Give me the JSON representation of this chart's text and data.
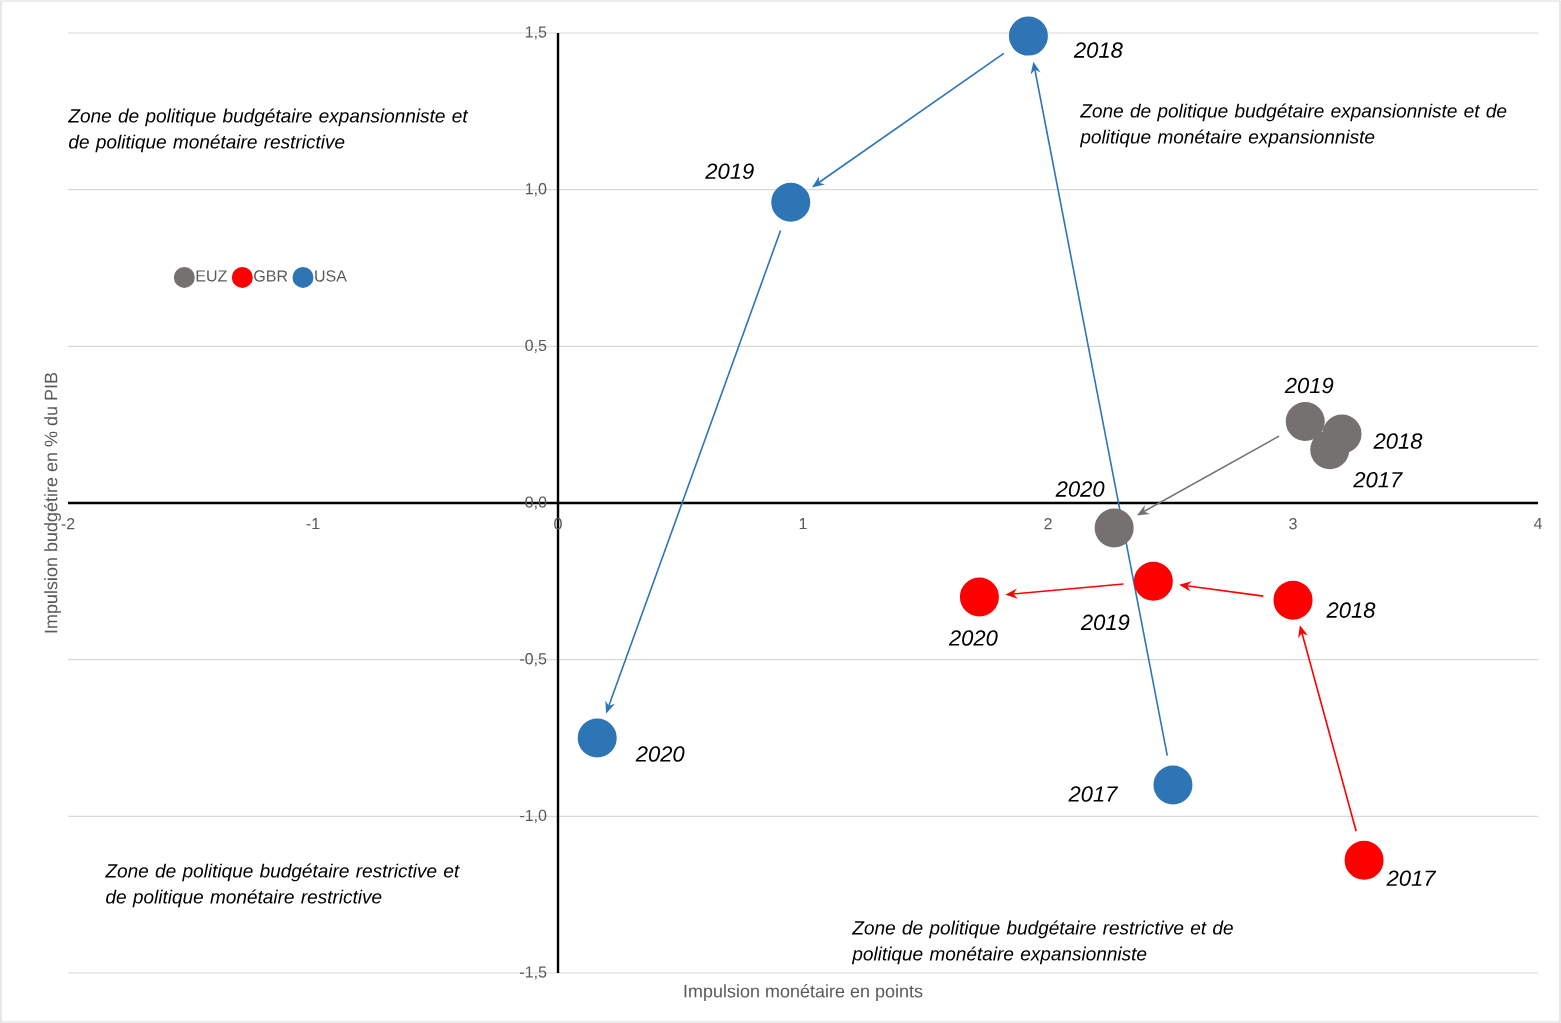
{
  "chart_data": {
    "type": "scatter",
    "xlabel": "Impulsion monétaire en points",
    "ylabel": "Impulsion budgétire en % du PIB",
    "xlim": [
      -2,
      4
    ],
    "xticks": [
      -2,
      -1,
      0,
      1,
      2,
      3,
      4
    ],
    "ylim": [
      -1.5,
      1.5
    ],
    "yticks": [
      {
        "value": -1.5,
        "label": "-1,5"
      },
      {
        "value": -1,
        "label": "-1,0"
      },
      {
        "value": -0.5,
        "label": "-0,5"
      },
      {
        "value": 0,
        "label": "0,0"
      },
      {
        "value": 0.5,
        "label": "0,5"
      },
      {
        "value": 1,
        "label": "1,0"
      },
      {
        "value": 1.5,
        "label": "1,5"
      }
    ],
    "grid": "y",
    "legend": "left",
    "marker": "circle",
    "series": [
      {
        "name": "EUZ",
        "color": "#767171",
        "x": [
          3.15,
          3.2,
          3.05,
          2.27
        ],
        "values": [
          0.17,
          0.22,
          0.26,
          -0.08
        ]
      },
      {
        "name": "GBR",
        "color": "#ff0000",
        "x": [
          3.29,
          3.0,
          2.43,
          1.72
        ],
        "values": [
          -1.14,
          -0.31,
          -0.25,
          -0.3
        ]
      },
      {
        "name": "USA",
        "color": "#2e75b6",
        "x": [
          2.51,
          1.92,
          0.95,
          0.16
        ],
        "values": [
          -0.9,
          1.49,
          0.96,
          -0.75
        ]
      }
    ],
    "annotations": [
      "Zone de politique budgétaire expansionniste et de politique monétaire restrictive",
      "Zone de politique budgétaire expansionniste et de politique monétaire expansionniste",
      "Zone de politique budgétaire restrictive et de politique monétaire restrictive",
      "Zone de politique budgétaire restrictive et de politique monétaire expansionniste",
      {
        "text": "2017",
        "x": 3.15,
        "y": 0.17
      },
      {
        "text": "2018",
        "x": 3.2,
        "y": 0.22
      },
      {
        "text": "2019",
        "x": 3.05,
        "y": 0.26
      },
      {
        "text": "2020",
        "x": 2.27,
        "y": -0.08
      },
      {
        "text": "2017",
        "x": 3.29,
        "y": -1.14
      },
      {
        "text": "2018",
        "x": 3.0,
        "y": -0.31
      },
      {
        "text": "2019",
        "x": 2.43,
        "y": -0.25
      },
      {
        "text": "2020",
        "x": 1.72,
        "y": -0.3
      },
      {
        "text": "2017",
        "x": 2.51,
        "y": -0.9
      },
      {
        "text": "2018",
        "x": 1.92,
        "y": 1.49
      },
      {
        "text": "2019",
        "x": 0.95,
        "y": 0.96
      },
      {
        "text": "2020",
        "x": 0.16,
        "y": -0.75
      }
    ]
  }
}
